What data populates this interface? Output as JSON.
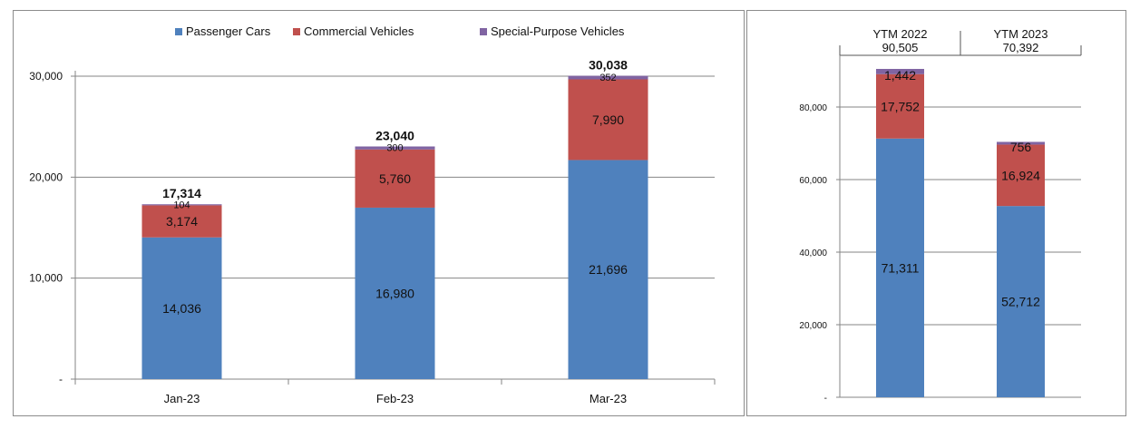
{
  "chart_data": [
    {
      "type": "bar",
      "stacked": true,
      "title": "",
      "categories": [
        "Jan-23",
        "Feb-23",
        "Mar-23"
      ],
      "series": [
        {
          "name": "Passenger Cars",
          "color": "#4f81bd",
          "values": [
            14036,
            16980,
            21696
          ],
          "labels": [
            "14,036",
            "16,980",
            "21,696"
          ]
        },
        {
          "name": "Commercial Vehicles",
          "color": "#c0504d",
          "values": [
            3174,
            5760,
            7990
          ],
          "labels": [
            "3,174",
            "5,760",
            "7,990"
          ]
        },
        {
          "name": "Special-Purpose Vehicles",
          "color": "#8064a2",
          "values": [
            104,
            300,
            352
          ],
          "labels": [
            "104",
            "300",
            "352"
          ]
        }
      ],
      "totals": [
        17314,
        23040,
        30038
      ],
      "total_labels": [
        "17,314",
        "23,040",
        "30,038"
      ],
      "ylim": [
        0,
        30000
      ],
      "yticks": [
        0,
        10000,
        20000,
        30000
      ],
      "ytick_labels": [
        "-",
        "10,000",
        "20,000",
        "30,000"
      ],
      "grid": true,
      "legend": "top"
    },
    {
      "type": "bar",
      "stacked": true,
      "title": "",
      "categories": [
        "YTM 2022",
        "YTM 2023"
      ],
      "category_totals_text": [
        "90,505",
        "70,392"
      ],
      "series": [
        {
          "name": "Passenger Cars",
          "color": "#4f81bd",
          "values": [
            71311,
            52712
          ],
          "labels": [
            "71,311",
            "52,712"
          ]
        },
        {
          "name": "Commercial Vehicles",
          "color": "#c0504d",
          "values": [
            17752,
            16924
          ],
          "labels": [
            "17,752",
            "16,924"
          ]
        },
        {
          "name": "Special-Purpose Vehicles",
          "color": "#8064a2",
          "values": [
            1442,
            756
          ],
          "labels": [
            "1,442",
            "756"
          ]
        }
      ],
      "ylim": [
        0,
        90000
      ],
      "yticks": [
        0,
        20000,
        40000,
        60000,
        80000
      ],
      "ytick_labels": [
        "-",
        "20,000",
        "40,000",
        "60,000",
        "80,000"
      ],
      "grid": true
    }
  ]
}
